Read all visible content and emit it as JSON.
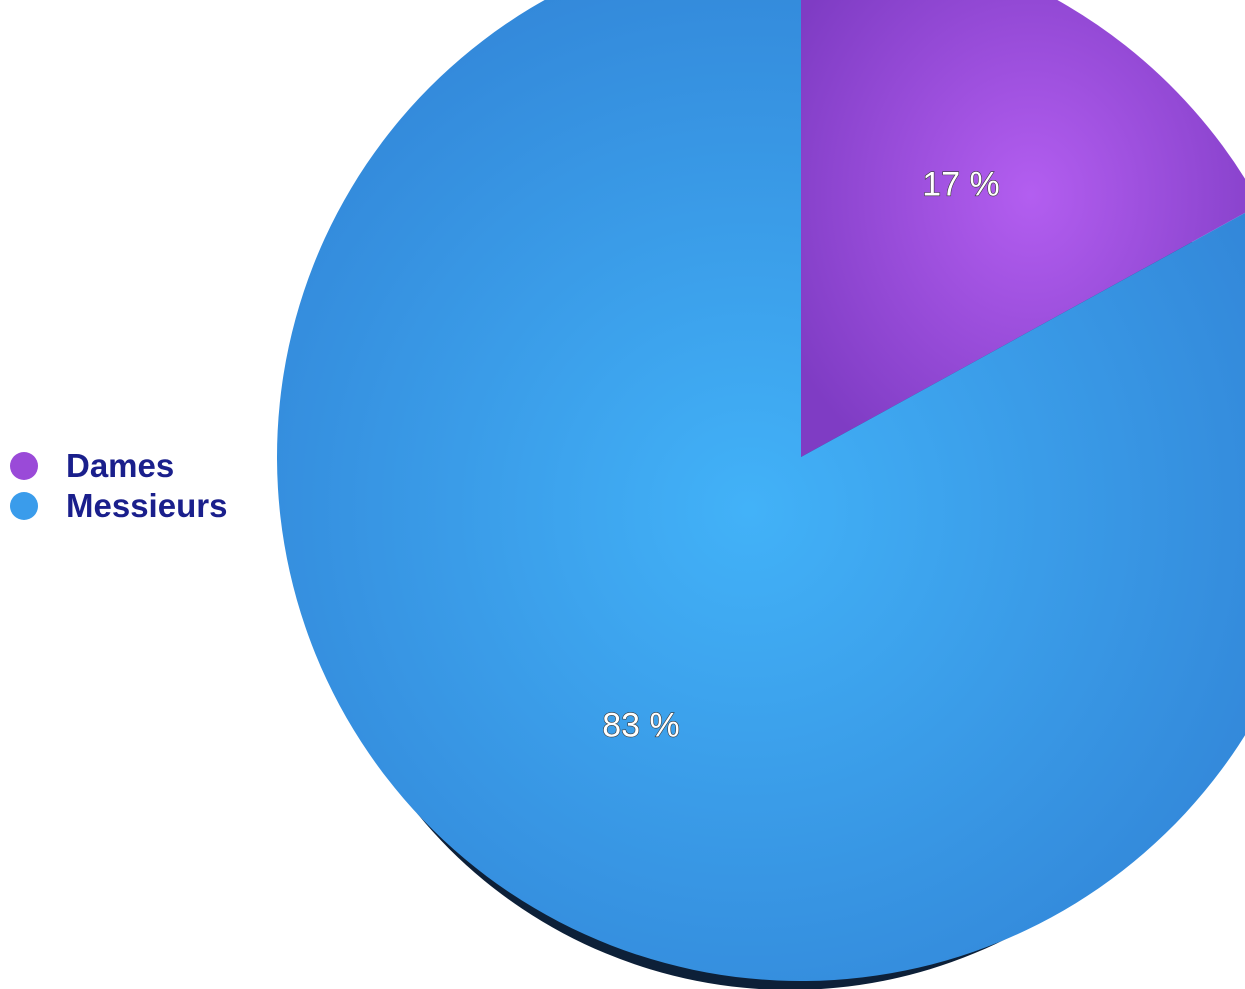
{
  "chart_data": {
    "type": "pie",
    "categories": [
      "Dames",
      "Messieurs"
    ],
    "values": [
      17,
      83
    ],
    "data_labels": [
      "17 %",
      "83 %"
    ],
    "colors": [
      "#9a4ad8",
      "#3a9ceb"
    ],
    "start_angle": "12 o'clock",
    "direction": "clockwise",
    "legend": {
      "placement": "left",
      "text_color": "#1a1f8c"
    }
  }
}
